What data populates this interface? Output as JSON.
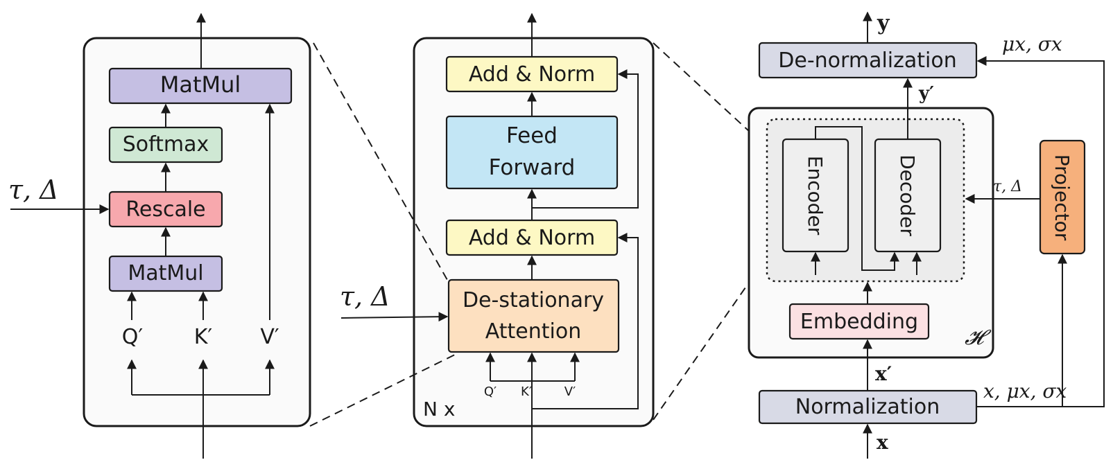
{
  "left_panel": {
    "matmul_top": "MatMul",
    "softmax": "Softmax",
    "rescale": "Rescale",
    "matmul_bottom": "MatMul",
    "q": "Q′",
    "k": "K′",
    "v": "V′",
    "input_label": "τ, Δ"
  },
  "middle_panel": {
    "add_norm_top": "Add & Norm",
    "feed_forward_line1": "Feed",
    "feed_forward_line2": "Forward",
    "add_norm_bottom": "Add & Norm",
    "attention_line1": "De-stationary",
    "attention_line2": "Attention",
    "q": "Q′",
    "k": "K′",
    "v": "V′",
    "repeat_label": "N x",
    "input_label": "τ, Δ"
  },
  "right_panel": {
    "denormalization": "De-normalization",
    "y_output": "y",
    "y_prime": "y′",
    "encoder": "Encoder",
    "decoder": "Decoder",
    "embedding": "Embedding",
    "model_symbol": "𝓗",
    "x_prime": "x′",
    "normalization": "Normalization",
    "x_input": "x",
    "projector": "Projector",
    "tau_delta": "τ, Δ",
    "mu_sigma": "μx, σx",
    "x_mu_sigma": "x, μx, σx"
  },
  "colors": {
    "matmul": "#c5bfe3",
    "softmax": "#cfe8d4",
    "rescale": "#f7a8ad",
    "add_norm": "#fdf8c4",
    "feed_forward": "#c3e6f5",
    "attention": "#fde0c0",
    "normalization": "#d8dae6",
    "embedding": "#fbe0e2",
    "encoder_decoder": "#efefef",
    "projector": "#f6b07c"
  }
}
